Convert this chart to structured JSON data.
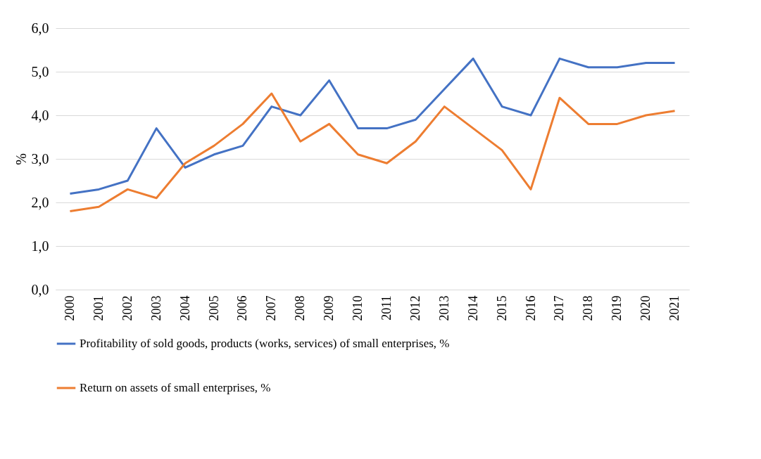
{
  "chart_data": {
    "type": "line",
    "ylabel": "%",
    "categories": [
      "2000",
      "2001",
      "2002",
      "2003",
      "2004",
      "2005",
      "2006",
      "2007",
      "2008",
      "2009",
      "2010",
      "2011",
      "2012",
      "2013",
      "2014",
      "2015",
      "2016",
      "2017",
      "2018",
      "2019",
      "2020",
      "2021"
    ],
    "series": [
      {
        "name": "Profitability of sold goods, products (works, services) of small enterprises, %",
        "color": "#4472c4",
        "values": [
          2.2,
          2.3,
          2.5,
          3.7,
          2.8,
          3.1,
          3.3,
          4.2,
          4.0,
          4.8,
          3.7,
          3.7,
          3.9,
          4.6,
          5.3,
          4.2,
          4.0,
          5.3,
          5.1,
          5.1,
          5.2,
          5.2
        ]
      },
      {
        "name": "Return on assets of small enterprises, %",
        "color": "#ed7d31",
        "values": [
          1.8,
          1.9,
          2.3,
          2.1,
          2.9,
          3.3,
          3.8,
          4.5,
          3.4,
          3.8,
          3.1,
          2.9,
          3.4,
          4.2,
          3.7,
          3.2,
          2.3,
          4.4,
          3.8,
          3.8,
          4.0,
          4.1
        ]
      }
    ],
    "ylim": [
      0,
      6
    ],
    "yticks": [
      {
        "value": 0,
        "label": "0,0"
      },
      {
        "value": 1,
        "label": "1,0"
      },
      {
        "value": 2,
        "label": "2,0"
      },
      {
        "value": 3,
        "label": "3,0"
      },
      {
        "value": 4,
        "label": "4,0"
      },
      {
        "value": 5,
        "label": "5,0"
      },
      {
        "value": 6,
        "label": "6,0"
      }
    ],
    "grid": "y",
    "legend": "bottom",
    "marker": "none",
    "line_style": "solid"
  }
}
